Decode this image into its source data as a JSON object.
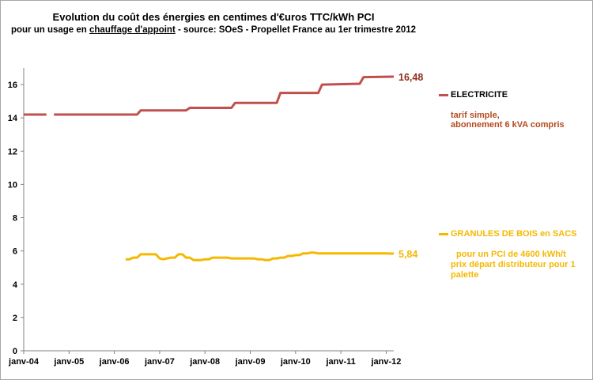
{
  "header": {
    "title": "Evolution du coût des énergies en centimes d'€uros TTC/kWh PCI",
    "subtitle_pre": "pour un usage en ",
    "subtitle_underlined": "chauffage d'appoint",
    "subtitle_post": " - source: SOeS - Propellet France au 1er trimestre 2012"
  },
  "colors": {
    "electricite": "#c0504d",
    "granules": "#f5b800",
    "axis": "#808080"
  },
  "legend": {
    "electricite": {
      "name": "ELECTRICITE",
      "note1": "tarif simple,",
      "note2": "abonnement 6 kVA compris"
    },
    "granules": {
      "name": "GRANULES DE BOIS en SACS",
      "note1": "pour un PCI de 4600 kWh/t",
      "note2": "prix départ distributeur pour 1",
      "note3": "palette"
    }
  },
  "chart_data": {
    "type": "line",
    "title": "Evolution du coût des énergies en centimes d'€uros TTC/kWh PCI",
    "x_tick_labels": [
      "janv-04",
      "janv-05",
      "janv-06",
      "janv-07",
      "janv-08",
      "janv-09",
      "janv-10",
      "janv-11",
      "janv-12"
    ],
    "xlim": [
      "2004-01",
      "2012-03"
    ],
    "ylim": [
      0,
      17
    ],
    "y_ticks": [
      0,
      2,
      4,
      6,
      8,
      10,
      12,
      14,
      16
    ],
    "grid": false,
    "legend_position": "right",
    "series": [
      {
        "name": "ELECTRICITE",
        "end_label": "16,48",
        "points": [
          [
            "2004-01",
            14.2
          ],
          [
            "2004-07",
            14.2
          ],
          [
            "2004-09",
            14.2
          ],
          [
            "2005-07",
            14.2
          ],
          [
            "2006-07",
            14.2
          ],
          [
            "2006-08",
            14.45
          ],
          [
            "2007-08",
            14.45
          ],
          [
            "2007-09",
            14.6
          ],
          [
            "2008-08",
            14.6
          ],
          [
            "2008-09",
            14.9
          ],
          [
            "2009-08",
            14.9
          ],
          [
            "2009-09",
            15.5
          ],
          [
            "2010-07",
            15.5
          ],
          [
            "2010-08",
            16.0
          ],
          [
            "2011-06",
            16.05
          ],
          [
            "2011-07",
            16.45
          ],
          [
            "2012-03",
            16.48
          ]
        ],
        "gaps_after": [
          "2004-07"
        ]
      },
      {
        "name": "GRANULES DE BOIS en SACS",
        "end_label": "5,84",
        "points": [
          [
            "2006-04",
            5.5
          ],
          [
            "2006-05",
            5.5
          ],
          [
            "2006-06",
            5.6
          ],
          [
            "2006-07",
            5.6
          ],
          [
            "2006-08",
            5.8
          ],
          [
            "2006-09",
            5.8
          ],
          [
            "2006-10",
            5.8
          ],
          [
            "2006-11",
            5.8
          ],
          [
            "2006-12",
            5.8
          ],
          [
            "2007-01",
            5.55
          ],
          [
            "2007-02",
            5.5
          ],
          [
            "2007-03",
            5.55
          ],
          [
            "2007-04",
            5.6
          ],
          [
            "2007-05",
            5.6
          ],
          [
            "2007-06",
            5.8
          ],
          [
            "2007-07",
            5.8
          ],
          [
            "2007-08",
            5.6
          ],
          [
            "2007-09",
            5.6
          ],
          [
            "2007-10",
            5.45
          ],
          [
            "2007-11",
            5.45
          ],
          [
            "2007-12",
            5.45
          ],
          [
            "2008-01",
            5.5
          ],
          [
            "2008-02",
            5.5
          ],
          [
            "2008-03",
            5.6
          ],
          [
            "2008-04",
            5.6
          ],
          [
            "2008-05",
            5.6
          ],
          [
            "2008-06",
            5.6
          ],
          [
            "2008-07",
            5.6
          ],
          [
            "2008-08",
            5.55
          ],
          [
            "2008-09",
            5.55
          ],
          [
            "2008-10",
            5.55
          ],
          [
            "2008-11",
            5.55
          ],
          [
            "2008-12",
            5.55
          ],
          [
            "2009-01",
            5.55
          ],
          [
            "2009-02",
            5.55
          ],
          [
            "2009-03",
            5.5
          ],
          [
            "2009-04",
            5.5
          ],
          [
            "2009-05",
            5.45
          ],
          [
            "2009-06",
            5.45
          ],
          [
            "2009-07",
            5.55
          ],
          [
            "2009-08",
            5.55
          ],
          [
            "2009-09",
            5.6
          ],
          [
            "2009-10",
            5.6
          ],
          [
            "2009-11",
            5.7
          ],
          [
            "2009-12",
            5.7
          ],
          [
            "2010-01",
            5.75
          ],
          [
            "2010-02",
            5.75
          ],
          [
            "2010-03",
            5.85
          ],
          [
            "2010-04",
            5.85
          ],
          [
            "2010-05",
            5.9
          ],
          [
            "2010-06",
            5.9
          ],
          [
            "2010-07",
            5.85
          ],
          [
            "2010-08",
            5.85
          ],
          [
            "2010-09",
            5.85
          ],
          [
            "2010-10",
            5.85
          ],
          [
            "2010-11",
            5.85
          ],
          [
            "2010-12",
            5.85
          ],
          [
            "2011-01",
            5.85
          ],
          [
            "2011-02",
            5.85
          ],
          [
            "2011-03",
            5.85
          ],
          [
            "2011-04",
            5.85
          ],
          [
            "2011-05",
            5.85
          ],
          [
            "2011-06",
            5.85
          ],
          [
            "2011-07",
            5.85
          ],
          [
            "2011-08",
            5.85
          ],
          [
            "2011-09",
            5.85
          ],
          [
            "2011-10",
            5.85
          ],
          [
            "2011-11",
            5.85
          ],
          [
            "2011-12",
            5.85
          ],
          [
            "2012-01",
            5.85
          ],
          [
            "2012-02",
            5.84
          ],
          [
            "2012-03",
            5.84
          ]
        ]
      }
    ]
  }
}
